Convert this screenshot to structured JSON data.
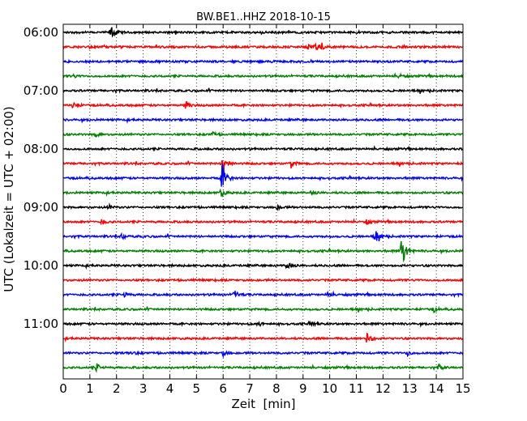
{
  "chart_data": {
    "type": "line",
    "title": "BW.BE1..HHZ 2018-10-15",
    "xlabel": "Zeit  [min]",
    "ylabel": "UTC (Lokalzeit = UTC + 02:00)",
    "xlim": [
      0,
      15
    ],
    "x_ticks": [
      "0",
      "1",
      "2",
      "3",
      "4",
      "5",
      "6",
      "7",
      "8",
      "9",
      "10",
      "11",
      "12",
      "13",
      "14",
      "15"
    ],
    "y_tick_labels": [
      "06:00",
      "07:00",
      "08:00",
      "09:00",
      "10:00",
      "11:00"
    ],
    "grid": "vertical dotted",
    "trace_colors": [
      "#000000",
      "#ff0000",
      "#0000ff",
      "#008000"
    ],
    "traces": [
      {
        "start": "06:00",
        "events": [
          {
            "t": 1.8,
            "amp": 1.0
          }
        ]
      },
      {
        "start": "06:15",
        "events": [
          {
            "t": 9.2,
            "amp": 0.4
          },
          {
            "t": 9.5,
            "amp": 0.4
          },
          {
            "t": 9.7,
            "amp": 0.35
          }
        ]
      },
      {
        "start": "06:30",
        "events": []
      },
      {
        "start": "06:45",
        "events": [
          {
            "t": 0.3,
            "amp": 0.3
          },
          {
            "t": 12.6,
            "amp": 0.25
          }
        ]
      },
      {
        "start": "07:00",
        "events": []
      },
      {
        "start": "07:15",
        "events": [
          {
            "t": 0.35,
            "amp": 0.5
          },
          {
            "t": 4.6,
            "amp": 0.55
          }
        ]
      },
      {
        "start": "07:30",
        "events": []
      },
      {
        "start": "07:45",
        "events": [
          {
            "t": 1.2,
            "amp": 0.35
          },
          {
            "t": 5.6,
            "amp": 0.3
          }
        ]
      },
      {
        "start": "08:00",
        "events": []
      },
      {
        "start": "08:15",
        "events": [
          {
            "t": 6.0,
            "amp": 1.2
          },
          {
            "t": 8.55,
            "amp": 0.55
          }
        ]
      },
      {
        "start": "08:30",
        "events": [
          {
            "t": 5.95,
            "amp": 2.2
          }
        ]
      },
      {
        "start": "08:45",
        "events": [
          {
            "t": 5.9,
            "amp": 0.5
          },
          {
            "t": 9.3,
            "amp": 0.3
          }
        ]
      },
      {
        "start": "09:00",
        "events": [
          {
            "t": 1.7,
            "amp": 0.3
          },
          {
            "t": 8.0,
            "amp": 0.3
          }
        ]
      },
      {
        "start": "09:15",
        "events": [
          {
            "t": 1.45,
            "amp": 0.35
          },
          {
            "t": 11.4,
            "amp": 0.3
          }
        ]
      },
      {
        "start": "09:30",
        "events": [
          {
            "t": 2.2,
            "amp": 0.35
          },
          {
            "t": 11.7,
            "amp": 0.8
          }
        ]
      },
      {
        "start": "09:45",
        "events": [
          {
            "t": 12.7,
            "amp": 2.1
          }
        ]
      },
      {
        "start": "10:00",
        "events": [
          {
            "t": 8.4,
            "amp": 0.7
          }
        ]
      },
      {
        "start": "10:15",
        "events": []
      },
      {
        "start": "10:30",
        "events": [
          {
            "t": 2.3,
            "amp": 0.35
          },
          {
            "t": 6.4,
            "amp": 0.6
          },
          {
            "t": 9.9,
            "amp": 0.3
          }
        ]
      },
      {
        "start": "10:45",
        "events": [
          {
            "t": 13.9,
            "amp": 0.3
          }
        ]
      },
      {
        "start": "11:00",
        "events": [
          {
            "t": 7.3,
            "amp": 0.3
          },
          {
            "t": 9.3,
            "amp": 0.3
          }
        ]
      },
      {
        "start": "11:15",
        "events": [
          {
            "t": 11.4,
            "amp": 0.9
          }
        ]
      },
      {
        "start": "11:30",
        "events": [
          {
            "t": 2.5,
            "amp": 0.35
          },
          {
            "t": 6.0,
            "amp": 0.3
          },
          {
            "t": 12.9,
            "amp": 0.35
          }
        ]
      },
      {
        "start": "11:45",
        "events": [
          {
            "t": 1.25,
            "amp": 0.5
          },
          {
            "t": 14.1,
            "amp": 0.3
          }
        ]
      }
    ]
  }
}
